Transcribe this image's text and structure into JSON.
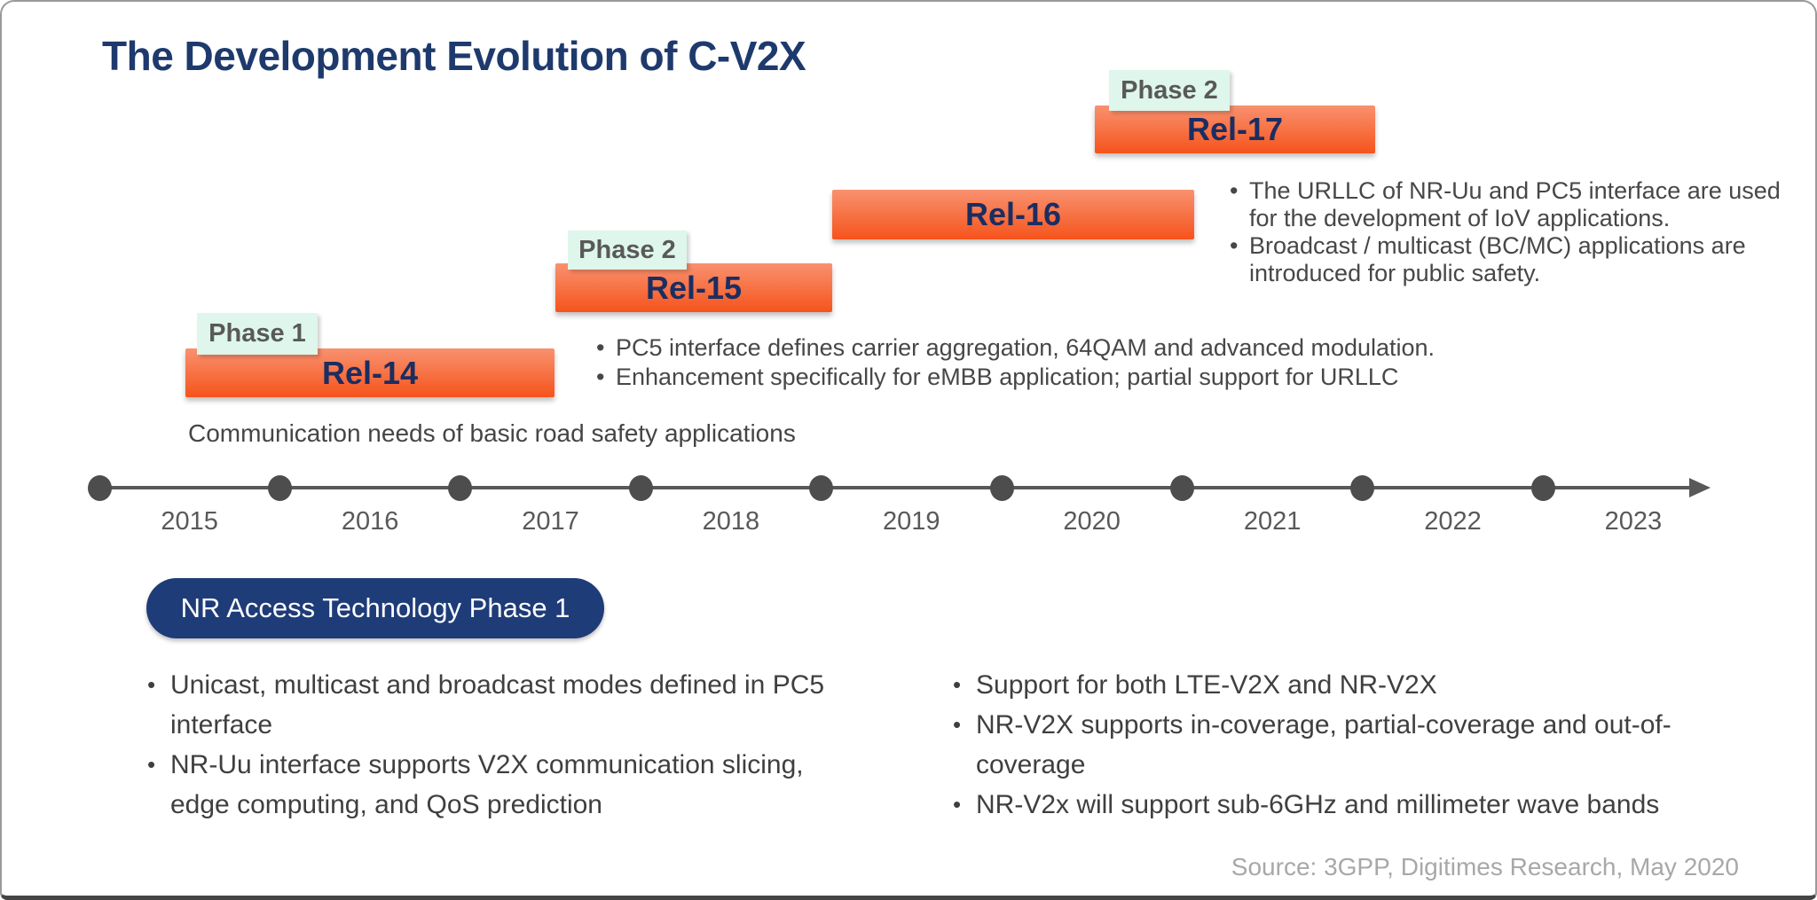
{
  "slide": {
    "title": "The Development Evolution of C-V2X",
    "source": "Source: 3GPP, Digitimes Research, May 2020"
  },
  "colors": {
    "title_navy": "#1e3a6d",
    "bar_label_navy": "#1b2d61",
    "bar_gradient_top": "#f9916f",
    "bar_gradient_bottom": "#f6531b",
    "phase_chip_bg": "#def6eb",
    "phase_chip_text": "#595959",
    "timeline_gray": "#595959",
    "pill_bg": "#1e3c78",
    "body_text": "#474747",
    "source_gray": "#a8a8a8"
  },
  "releases": [
    {
      "label": "Rel-14",
      "phase": "Phase 1",
      "start_year": 2015.5,
      "end_year": 2017.5
    },
    {
      "label": "Rel-15",
      "phase": "Phase 2",
      "start_year": 2017.5,
      "end_year": 2019.1
    },
    {
      "label": "Rel-16",
      "phase": "",
      "start_year": 2019.1,
      "end_year": 2021.1
    },
    {
      "label": "Rel-17",
      "phase": "Phase 2",
      "start_year": 2020.5,
      "end_year": 2022.1
    }
  ],
  "bullet_char": "•",
  "caption_rel14": "Communication needs of basic road safety applications",
  "mid_notes": [
    {
      "lines": [
        "PC5 interface defines carrier aggregation, 64QAM and advanced modulation."
      ]
    },
    {
      "lines": [
        "Enhancement specifically for eMBB application; partial support for URLLC"
      ]
    }
  ],
  "right_notes": [
    {
      "lines": [
        "The URLLC of NR-Uu and PC5 interface are used",
        "for the development of IoV applications."
      ]
    },
    {
      "lines": [
        "Broadcast / multicast (BC/MC) applications are",
        "introduced for public safety."
      ]
    }
  ],
  "timeline": {
    "years": [
      "2015",
      "2016",
      "2017",
      "2018",
      "2019",
      "2020",
      "2021",
      "2022",
      "2023"
    ]
  },
  "pill": {
    "label": "NR Access Technology Phase 1"
  },
  "bottom_left": [
    {
      "lines": [
        "Unicast, multicast and broadcast modes defined in PC5",
        "interface"
      ]
    },
    {
      "lines": [
        "NR-Uu interface supports V2X communication slicing,",
        "edge computing, and QoS prediction"
      ]
    }
  ],
  "bottom_right": [
    {
      "lines": [
        "Support for both LTE-V2X and NR-V2X"
      ]
    },
    {
      "lines": [
        "NR-V2X supports in-coverage, partial-coverage and out-of-",
        "coverage"
      ]
    },
    {
      "lines": [
        "NR-V2x will support sub-6GHz and millimeter wave bands"
      ]
    }
  ]
}
